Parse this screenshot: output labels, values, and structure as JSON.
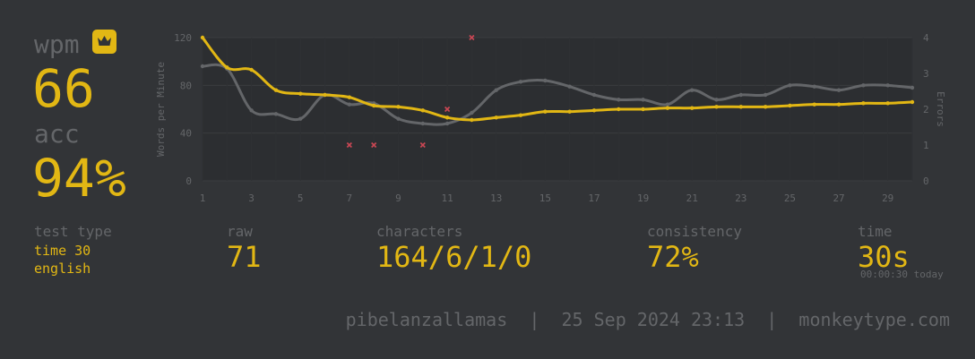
{
  "summary": {
    "wpm_label": "wpm",
    "wpm_value": "66",
    "acc_label": "acc",
    "acc_value": "94%",
    "personal_best_icon": "crown-icon"
  },
  "test_type": {
    "label": "test type",
    "mode": "time 30",
    "language": "english"
  },
  "stats": {
    "raw_label": "raw",
    "raw_value": "71",
    "characters_label": "characters",
    "characters_value": "164/6/1/0",
    "consistency_label": "consistency",
    "consistency_value": "72%",
    "time_label": "time",
    "time_value": "30s",
    "time_detail": "00:00:30 today"
  },
  "footer": {
    "username": "pibelanzallamas",
    "date": "25 Sep 2024 23:13",
    "site": "monkeytype.com",
    "separator": "|"
  },
  "colors": {
    "background": "#323437",
    "main": "#e2b714",
    "sub": "#646669",
    "raw_line": "#646669",
    "error": "#ca4754",
    "plot_bg": "#2c2e31"
  },
  "chart_data": {
    "type": "line",
    "x": [
      1,
      2,
      3,
      4,
      5,
      6,
      7,
      8,
      9,
      10,
      11,
      12,
      13,
      14,
      15,
      16,
      17,
      18,
      19,
      20,
      21,
      22,
      23,
      24,
      25,
      26,
      27,
      28,
      29,
      30
    ],
    "x_ticks": [
      "1",
      "3",
      "5",
      "7",
      "9",
      "11",
      "13",
      "15",
      "17",
      "19",
      "21",
      "23",
      "25",
      "27",
      "29"
    ],
    "xlim": [
      1,
      30
    ],
    "ylabel": "Words per Minute",
    "ylim": [
      0,
      120
    ],
    "y_ticks": [
      "0",
      "40",
      "80",
      "120"
    ],
    "y2label": "Errors",
    "y2lim": [
      0,
      4
    ],
    "y2_ticks": [
      "0",
      "1",
      "2",
      "3",
      "4"
    ],
    "grid": true,
    "series": [
      {
        "values": [
          120,
          95,
          93,
          76,
          73,
          72,
          70,
          63,
          62,
          59,
          53,
          51,
          53,
          55,
          58,
          58,
          59,
          60,
          60,
          61,
          61,
          62,
          62,
          62,
          63,
          64,
          64,
          65,
          65,
          66
        ]
      },
      {
        "values": [
          96,
          94,
          59,
          56,
          52,
          72,
          64,
          65,
          52,
          48,
          48,
          57,
          76,
          83,
          84,
          79,
          72,
          68,
          68,
          64,
          76,
          68,
          72,
          72,
          80,
          79,
          76,
          80,
          80,
          78
        ]
      },
      {
        "type": "scatter",
        "axis": "y2",
        "x": [
          7,
          8,
          10,
          11,
          12
        ],
        "values": [
          1,
          1,
          1,
          2,
          4
        ]
      }
    ]
  }
}
